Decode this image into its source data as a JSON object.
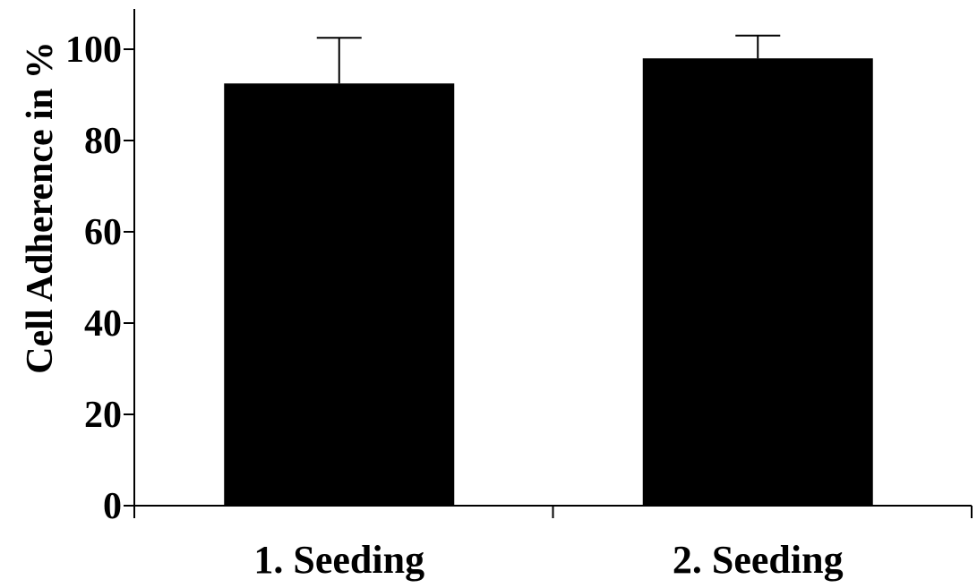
{
  "chart_data": {
    "type": "bar",
    "categories": [
      "1. Seeding",
      "2. Seeding"
    ],
    "values": [
      92.5,
      98
    ],
    "errors": [
      10,
      5
    ],
    "title": "",
    "xlabel": "",
    "ylabel": "Cell Adherence in %",
    "ylim": [
      0,
      108
    ],
    "yticks": [
      "0",
      "20",
      "40",
      "60",
      "80",
      "100"
    ],
    "grid": false,
    "bar_color": "#000000"
  }
}
